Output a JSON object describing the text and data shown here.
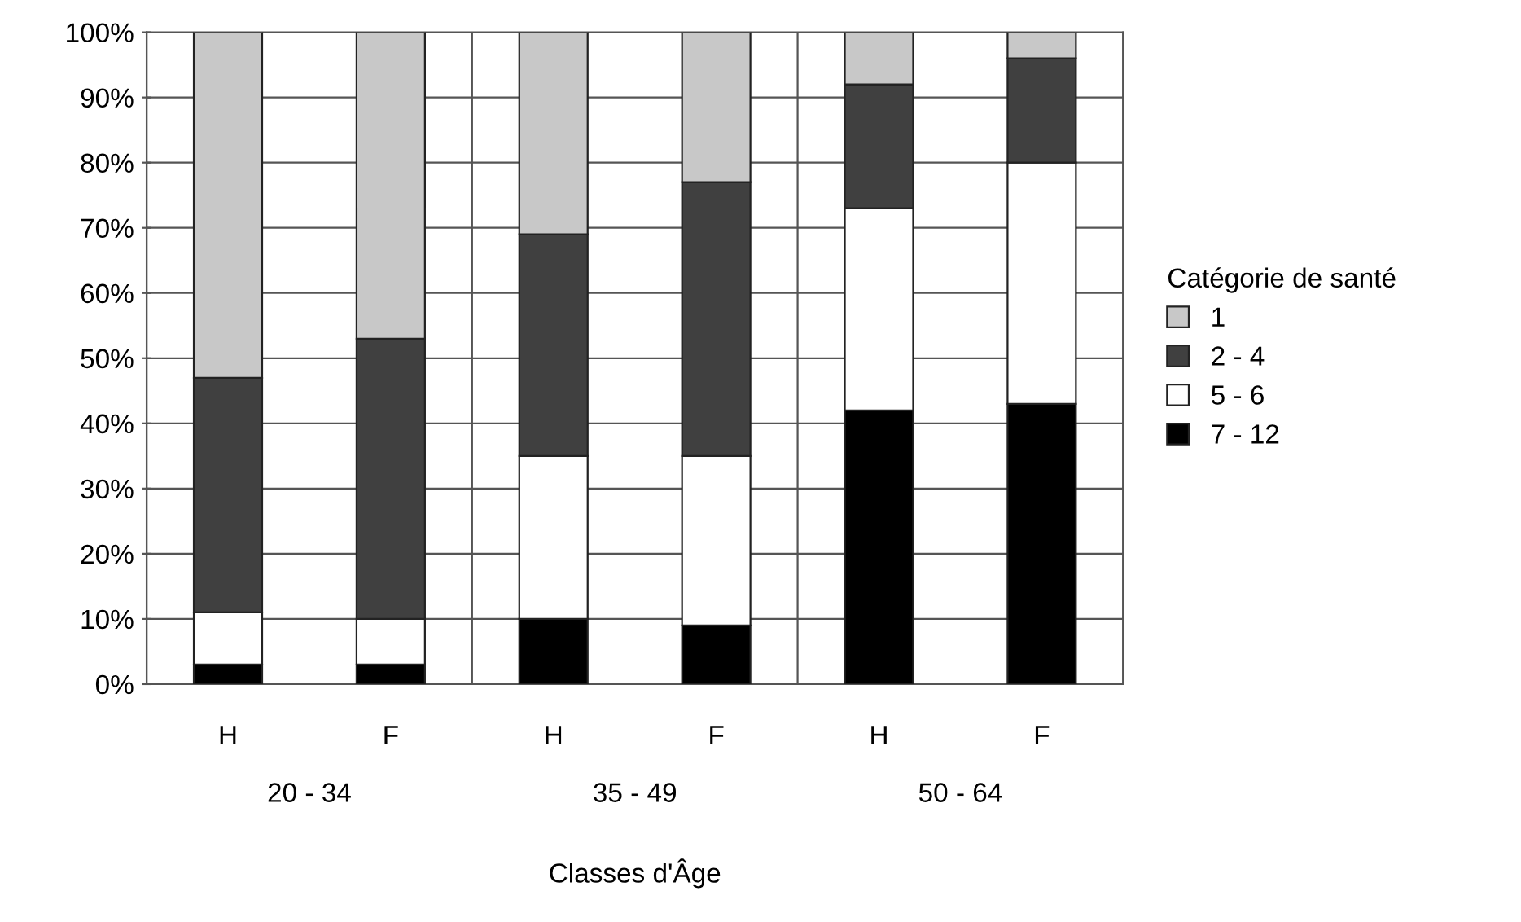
{
  "chart_data": {
    "type": "bar",
    "stacked": true,
    "xlabel": "Classes d'Âge",
    "legend_title": "Catégorie de santé",
    "legend": "right",
    "categories": [
      "H",
      "F",
      "H",
      "F",
      "H",
      "F"
    ],
    "annotations": [
      "20 - 34",
      "35 - 49",
      "50 - 64"
    ],
    "series": [
      {
        "name": "7 - 12",
        "color": "#000000",
        "values": [
          3,
          3,
          10,
          9,
          42,
          43
        ]
      },
      {
        "name": "5 - 6",
        "color": "#ffffff",
        "values": [
          8,
          7,
          25,
          26,
          31,
          37
        ]
      },
      {
        "name": "2 - 4",
        "color": "#404040",
        "values": [
          36,
          43,
          34,
          42,
          19,
          16
        ]
      },
      {
        "name": "1",
        "color": "#c8c8c8",
        "values": [
          53,
          47,
          31,
          23,
          8,
          4
        ]
      }
    ],
    "ylim": [
      0,
      100
    ],
    "yticks": [
      {
        "value": 0,
        "label": "0%"
      },
      {
        "value": 10,
        "label": "10%"
      },
      {
        "value": 20,
        "label": "20%"
      },
      {
        "value": 30,
        "label": "30%"
      },
      {
        "value": 40,
        "label": "40%"
      },
      {
        "value": 50,
        "label": "50%"
      },
      {
        "value": 60,
        "label": "60%"
      },
      {
        "value": 70,
        "label": "70%"
      },
      {
        "value": 80,
        "label": "80%"
      },
      {
        "value": 90,
        "label": "90%"
      },
      {
        "value": 100,
        "label": "100%"
      }
    ],
    "grid": true
  }
}
